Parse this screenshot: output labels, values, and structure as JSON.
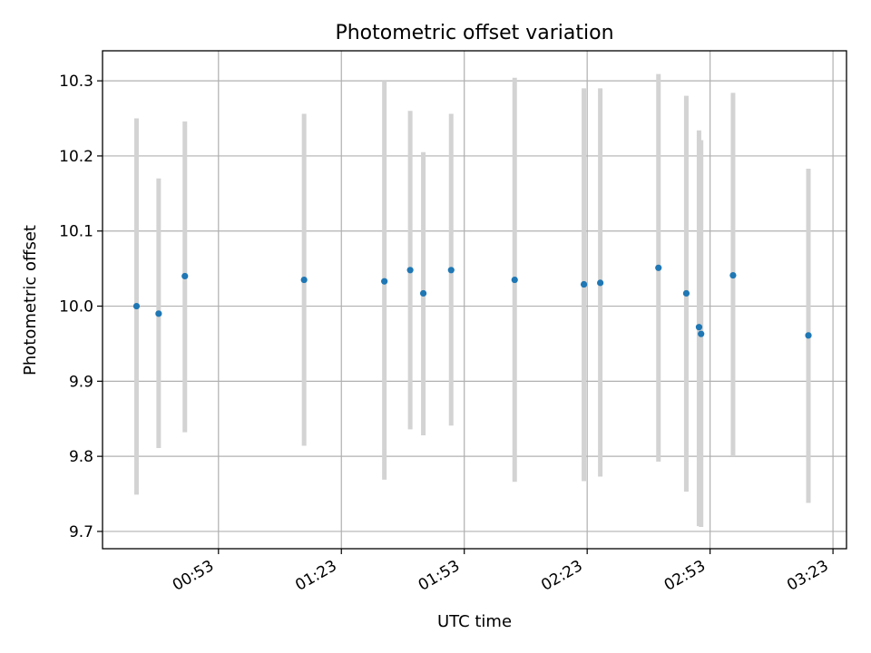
{
  "chart_data": {
    "type": "scatter",
    "title": "Photometric offset variation",
    "xlabel": "UTC time",
    "ylabel": "Photometric offset",
    "grid": true,
    "x_tick_labels": [
      "00:53",
      "01:23",
      "01:53",
      "02:23",
      "02:53",
      "03:23"
    ],
    "x_tick_minutes": [
      53,
      83,
      113,
      143,
      173,
      203
    ],
    "xlim_minutes": [
      24.7,
      206.3
    ],
    "y_ticks": [
      9.7,
      9.8,
      9.9,
      10.0,
      10.1,
      10.2,
      10.3
    ],
    "y_tick_labels": [
      "9.7",
      "9.8",
      "9.9",
      "10.0",
      "10.1",
      "10.2",
      "10.3"
    ],
    "ylim": [
      9.677,
      10.34
    ],
    "series": [
      {
        "marker_color": "#1f77b4",
        "errorbar_color": "#d3d3d3",
        "points": [
          {
            "t": 33.0,
            "y": 10.0,
            "lo": 9.749,
            "hi": 10.25
          },
          {
            "t": 38.4,
            "y": 9.99,
            "lo": 9.811,
            "hi": 10.17
          },
          {
            "t": 44.8,
            "y": 10.04,
            "lo": 9.832,
            "hi": 10.246
          },
          {
            "t": 73.9,
            "y": 10.035,
            "lo": 9.814,
            "hi": 10.256
          },
          {
            "t": 93.5,
            "y": 10.033,
            "lo": 9.769,
            "hi": 10.3
          },
          {
            "t": 99.8,
            "y": 10.048,
            "lo": 9.836,
            "hi": 10.26
          },
          {
            "t": 103.0,
            "y": 10.017,
            "lo": 9.828,
            "hi": 10.205
          },
          {
            "t": 109.8,
            "y": 10.048,
            "lo": 9.841,
            "hi": 10.256
          },
          {
            "t": 125.3,
            "y": 10.035,
            "lo": 9.766,
            "hi": 10.304
          },
          {
            "t": 142.2,
            "y": 10.029,
            "lo": 9.767,
            "hi": 10.29
          },
          {
            "t": 146.2,
            "y": 10.031,
            "lo": 9.773,
            "hi": 10.29
          },
          {
            "t": 160.4,
            "y": 10.051,
            "lo": 9.793,
            "hi": 10.309
          },
          {
            "t": 167.2,
            "y": 10.017,
            "lo": 9.753,
            "hi": 10.28
          },
          {
            "t": 170.3,
            "y": 9.972,
            "lo": 9.707,
            "hi": 10.234
          },
          {
            "t": 170.8,
            "y": 9.963,
            "lo": 9.706,
            "hi": 10.221
          },
          {
            "t": 178.6,
            "y": 10.041,
            "lo": 9.8,
            "hi": 10.284
          },
          {
            "t": 197.0,
            "y": 9.961,
            "lo": 9.738,
            "hi": 10.183
          }
        ]
      }
    ]
  }
}
